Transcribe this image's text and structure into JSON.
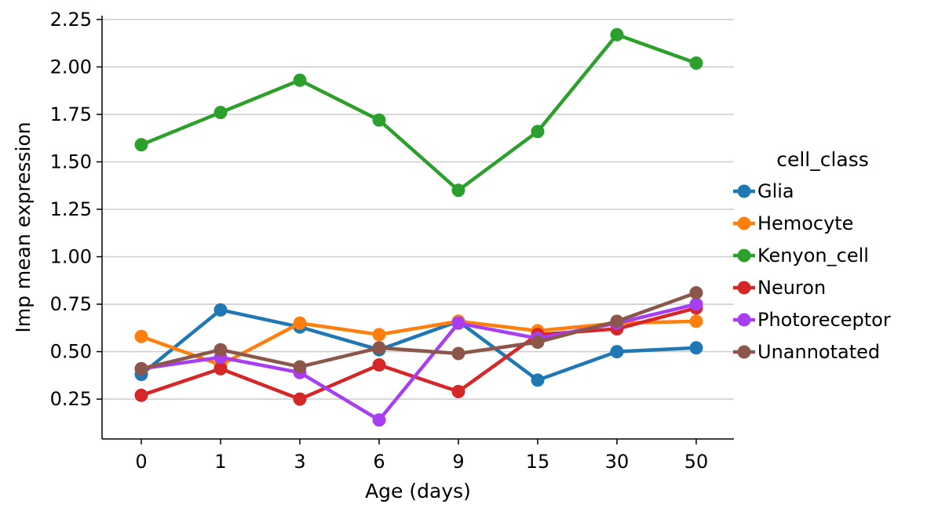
{
  "chart_data": {
    "type": "line",
    "title": "",
    "xlabel": "Age (days)",
    "ylabel": "Imp mean expression",
    "categories": [
      "0",
      "1",
      "3",
      "6",
      "9",
      "15",
      "30",
      "50"
    ],
    "ylim": [
      0.04,
      2.27
    ],
    "yticks": [
      0.25,
      0.5,
      0.75,
      1.0,
      1.25,
      1.5,
      1.75,
      2.0,
      2.25
    ],
    "ytick_labels": [
      "0.25",
      "0.50",
      "0.75",
      "1.00",
      "1.25",
      "1.50",
      "1.75",
      "2.00",
      "2.25"
    ],
    "grid": "horizontal",
    "legend": {
      "title": "cell_class",
      "placement": "right"
    },
    "series": [
      {
        "name": "Glia",
        "color": "#1f77b4",
        "values": [
          0.38,
          0.72,
          0.63,
          0.51,
          0.66,
          0.35,
          0.5,
          0.52
        ]
      },
      {
        "name": "Hemocyte",
        "color": "#ff7f0e",
        "values": [
          0.58,
          0.43,
          0.65,
          0.59,
          0.66,
          0.61,
          0.65,
          0.66
        ]
      },
      {
        "name": "Kenyon_cell",
        "color": "#2ca02c",
        "values": [
          1.59,
          1.76,
          1.93,
          1.72,
          1.35,
          1.66,
          2.17,
          2.02
        ]
      },
      {
        "name": "Neuron",
        "color": "#d62728",
        "values": [
          0.27,
          0.41,
          0.25,
          0.43,
          0.29,
          0.59,
          0.62,
          0.73
        ]
      },
      {
        "name": "Photoreceptor",
        "color": "#a73ef2",
        "values": [
          0.41,
          0.47,
          0.39,
          0.14,
          0.65,
          0.57,
          0.65,
          0.75
        ]
      },
      {
        "name": "Unannotated",
        "color": "#8c564b",
        "values": [
          0.41,
          0.51,
          0.42,
          0.52,
          0.49,
          0.55,
          0.66,
          0.81
        ]
      }
    ]
  }
}
